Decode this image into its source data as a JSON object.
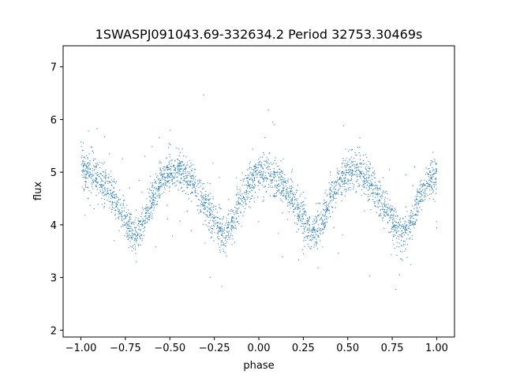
{
  "chart_data": {
    "type": "scatter",
    "title": "1SWASPJ091043.69-332634.2 Period 32753.30469s",
    "xlabel": "phase",
    "ylabel": "flux",
    "xlim": [
      -1.1,
      1.1
    ],
    "ylim": [
      1.87,
      7.4
    ],
    "x_ticks": [
      -1.0,
      -0.75,
      -0.5,
      -0.25,
      0.0,
      0.25,
      0.5,
      0.75,
      1.0
    ],
    "x_tick_labels": [
      "−1.00",
      "−0.75",
      "−0.50",
      "−0.25",
      "0.00",
      "0.25",
      "0.50",
      "0.75",
      "1.00"
    ],
    "y_ticks": [
      2,
      3,
      4,
      5,
      6,
      7
    ],
    "y_tick_labels": [
      "2",
      "3",
      "4",
      "5",
      "6",
      "7"
    ],
    "grid": false,
    "legend": "none",
    "marker_color": "#1f77b4",
    "series": [
      {
        "x": [
          -1.0,
          -0.95,
          -0.9,
          -0.85,
          -0.8,
          -0.75,
          -0.7,
          -0.65,
          -0.6,
          -0.55,
          -0.5,
          -0.45,
          -0.4,
          -0.35,
          -0.3,
          -0.25,
          -0.2,
          -0.15,
          -0.1,
          -0.05,
          0.0,
          0.05,
          0.1,
          0.15,
          0.2,
          0.25,
          0.3,
          0.35,
          0.4,
          0.45,
          0.5,
          0.55,
          0.6,
          0.65,
          0.7,
          0.75,
          0.8,
          0.85,
          0.9,
          0.95,
          1.0
        ],
        "y": [
          5.0,
          5.0,
          4.9,
          4.7,
          4.4,
          4.1,
          3.8,
          4.0,
          4.5,
          4.8,
          5.0,
          5.0,
          4.9,
          4.7,
          4.4,
          4.1,
          3.8,
          4.0,
          4.5,
          4.8,
          5.0,
          5.0,
          4.9,
          4.7,
          4.4,
          4.1,
          3.8,
          4.0,
          4.5,
          4.8,
          5.0,
          5.0,
          4.9,
          4.7,
          4.4,
          4.1,
          3.8,
          4.0,
          4.5,
          4.8,
          5.0
        ]
      }
    ]
  }
}
